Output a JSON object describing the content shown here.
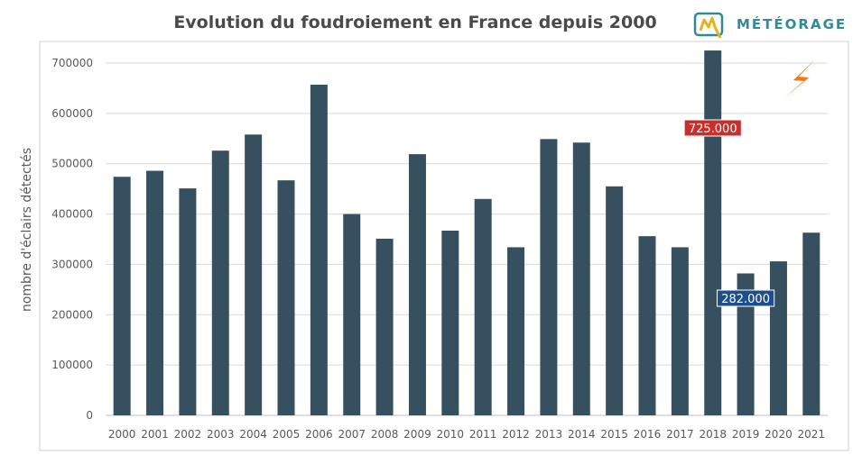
{
  "header": {
    "title": "Evolution du foudroiement en France depuis 2000",
    "brand": "MÉTÉORAGE"
  },
  "colors": {
    "bar": "#37505f",
    "grid": "#d9d9d9",
    "axis_text": "#595959",
    "highlight_max": "#c9302c",
    "highlight_min": "#1f4e8c",
    "bolt": "#f07a1a",
    "brand": "#2f8a9a"
  },
  "chart_data": {
    "type": "bar",
    "title": "Evolution du foudroiement en France depuis 2000",
    "xlabel": "",
    "ylabel": "nombre d'éclairs détectés",
    "ylim": [
      0,
      700000
    ],
    "yticks": [
      0,
      100000,
      200000,
      300000,
      400000,
      500000,
      600000,
      700000
    ],
    "ytick_labels": [
      "0",
      "100000",
      "200000",
      "300000",
      "400000",
      "500000",
      "600000",
      "700000"
    ],
    "grid": true,
    "categories": [
      "2000",
      "2001",
      "2002",
      "2003",
      "2004",
      "2005",
      "2006",
      "2007",
      "2008",
      "2009",
      "2010",
      "2011",
      "2012",
      "2013",
      "2014",
      "2015",
      "2016",
      "2017",
      "2018",
      "2019",
      "2020",
      "2021"
    ],
    "values": [
      474000,
      486000,
      451000,
      526000,
      558000,
      467000,
      657000,
      400000,
      351000,
      519000,
      367000,
      430000,
      334000,
      549000,
      542000,
      455000,
      356000,
      334000,
      725000,
      282000,
      306000,
      363000
    ],
    "annotations": [
      {
        "category": "2018",
        "label": "725.000",
        "style": "max"
      },
      {
        "category": "2019",
        "label": "282.000",
        "style": "min"
      }
    ]
  }
}
